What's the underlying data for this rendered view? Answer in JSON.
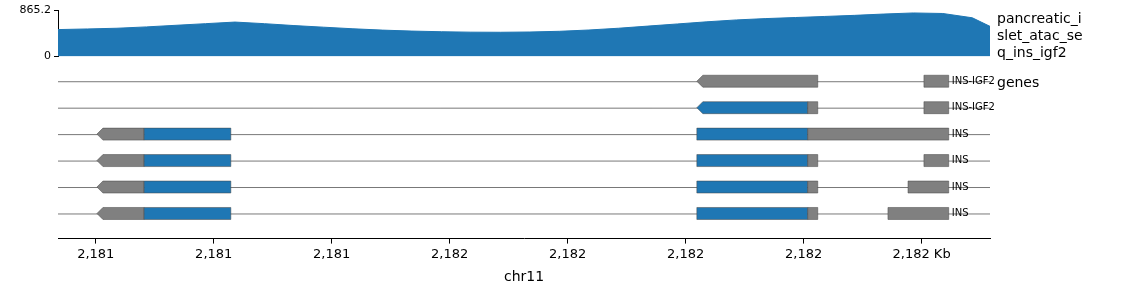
{
  "chart_data": {
    "type": "genome_tracks",
    "xlabel": "chr11",
    "xlim": [
      2180.936,
      2182.516
    ],
    "xticks": [
      {
        "value": 2181.0,
        "label": "2,181"
      },
      {
        "value": 2181.2,
        "label": "2,181"
      },
      {
        "value": 2181.4,
        "label": "2,181"
      },
      {
        "value": 2181.6,
        "label": "2,182"
      },
      {
        "value": 2181.8,
        "label": "2,182"
      },
      {
        "value": 2182.0,
        "label": "2,182"
      },
      {
        "value": 2182.2,
        "label": "2,182"
      },
      {
        "value": 2182.4,
        "label": "2,182 Kb"
      }
    ],
    "tracks": [
      {
        "type": "area",
        "title": "pancreatic_islet_atac_seq_ins_igf2",
        "color": "#1f77b4",
        "ylim": [
          0,
          865.2
        ],
        "yticks": [
          0,
          865.2
        ],
        "x": [
          2180.936,
          2180.986,
          2181.036,
          2181.086,
          2181.136,
          2181.186,
          2181.236,
          2181.286,
          2181.336,
          2181.386,
          2181.436,
          2181.486,
          2181.536,
          2181.586,
          2181.636,
          2181.686,
          2181.736,
          2181.786,
          2181.836,
          2181.886,
          2181.936,
          2181.986,
          2182.036,
          2182.086,
          2182.136,
          2182.186,
          2182.236,
          2182.286,
          2182.336,
          2182.386,
          2182.436,
          2182.486,
          2182.516
        ],
        "values": [
          500,
          512,
          525,
          550,
          580,
          610,
          640,
          610,
          575,
          545,
          515,
          490,
          472,
          460,
          452,
          450,
          455,
          468,
          492,
          525,
          565,
          605,
          645,
          680,
          705,
          725,
          745,
          765,
          790,
          810,
          800,
          720,
          560
        ]
      },
      {
        "type": "genes",
        "title": "genes",
        "transcripts": [
          {
            "name": "INS-IGF2",
            "strand": "-",
            "start": 2180.9,
            "end": 2182.6,
            "exons": [
              {
                "start": 2182.019,
                "end": 2182.224,
                "color": "#808080"
              },
              {
                "start": 2182.404,
                "end": 2182.446,
                "color": "#808080"
              }
            ]
          },
          {
            "name": "INS-IGF2",
            "strand": "-",
            "start": 2180.9,
            "end": 2182.6,
            "exons": [
              {
                "start": 2182.019,
                "end": 2182.207,
                "color": "#1f77b4"
              },
              {
                "start": 2182.207,
                "end": 2182.224,
                "color": "#808080"
              },
              {
                "start": 2182.404,
                "end": 2182.446,
                "color": "#808080"
              }
            ]
          },
          {
            "name": "INS",
            "strand": "-",
            "start": 2180.9,
            "end": 2182.6,
            "exons": [
              {
                "start": 2181.002,
                "end": 2181.082,
                "color": "#808080"
              },
              {
                "start": 2181.082,
                "end": 2181.229,
                "color": "#1f77b4"
              },
              {
                "start": 2182.019,
                "end": 2182.207,
                "color": "#1f77b4"
              },
              {
                "start": 2182.207,
                "end": 2182.446,
                "color": "#808080"
              }
            ]
          },
          {
            "name": "INS",
            "strand": "-",
            "start": 2180.9,
            "end": 2182.6,
            "exons": [
              {
                "start": 2181.002,
                "end": 2181.082,
                "color": "#808080"
              },
              {
                "start": 2181.082,
                "end": 2181.229,
                "color": "#1f77b4"
              },
              {
                "start": 2182.019,
                "end": 2182.207,
                "color": "#1f77b4"
              },
              {
                "start": 2182.207,
                "end": 2182.224,
                "color": "#808080"
              },
              {
                "start": 2182.404,
                "end": 2182.446,
                "color": "#808080"
              }
            ]
          },
          {
            "name": "INS",
            "strand": "-",
            "start": 2180.9,
            "end": 2182.6,
            "exons": [
              {
                "start": 2181.002,
                "end": 2181.082,
                "color": "#808080"
              },
              {
                "start": 2181.082,
                "end": 2181.229,
                "color": "#1f77b4"
              },
              {
                "start": 2182.019,
                "end": 2182.207,
                "color": "#1f77b4"
              },
              {
                "start": 2182.207,
                "end": 2182.224,
                "color": "#808080"
              },
              {
                "start": 2182.377,
                "end": 2182.446,
                "color": "#808080"
              }
            ]
          },
          {
            "name": "INS",
            "strand": "-",
            "start": 2180.9,
            "end": 2182.6,
            "exons": [
              {
                "start": 2181.002,
                "end": 2181.082,
                "color": "#808080"
              },
              {
                "start": 2181.082,
                "end": 2181.229,
                "color": "#1f77b4"
              },
              {
                "start": 2182.019,
                "end": 2182.207,
                "color": "#1f77b4"
              },
              {
                "start": 2182.207,
                "end": 2182.224,
                "color": "#808080"
              },
              {
                "start": 2182.343,
                "end": 2182.446,
                "color": "#808080"
              }
            ]
          }
        ]
      }
    ]
  }
}
